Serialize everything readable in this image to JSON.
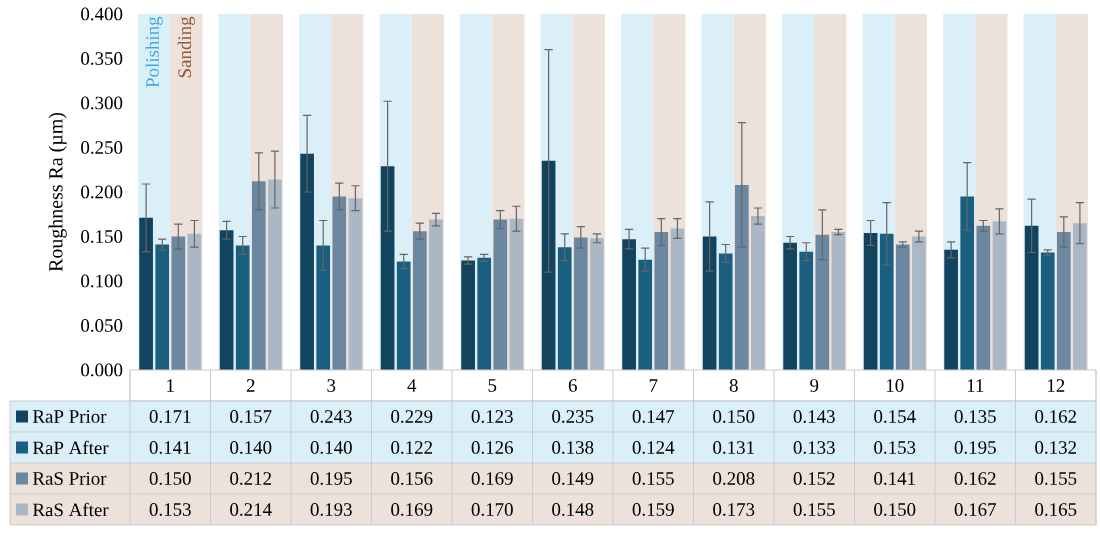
{
  "chart_data": {
    "type": "bar",
    "ylabel": "Roughness Ra (µm)",
    "categories": [
      "1",
      "2",
      "3",
      "4",
      "5",
      "6",
      "7",
      "8",
      "9",
      "10",
      "11",
      "12"
    ],
    "ylim": [
      0,
      0.4
    ],
    "yticks": [
      {
        "value": 0,
        "label": "0.000"
      },
      {
        "value": 0.05,
        "label": "0.050"
      },
      {
        "value": 0.1,
        "label": "0.100"
      },
      {
        "value": 0.15,
        "label": "0.150"
      },
      {
        "value": 0.2,
        "label": "0.200"
      },
      {
        "value": 0.25,
        "label": "0.250"
      },
      {
        "value": 0.3,
        "label": "0.300"
      },
      {
        "value": 0.35,
        "label": "0.350"
      },
      {
        "value": 0.4,
        "label": "0.400"
      }
    ],
    "legend": "bottom",
    "bands": [
      {
        "axis": "x",
        "from": "1",
        "to": "1",
        "label": "Polishing",
        "color": "#dbeff8"
      },
      {
        "axis": "x",
        "from": "1",
        "to": "1",
        "label": "Sanding",
        "color": "#ede1db"
      },
      {
        "axis": "x",
        "from": "2",
        "to": "2",
        "color": "#dbeff8"
      },
      {
        "axis": "x",
        "from": "2",
        "to": "2",
        "color": "#ede1db"
      },
      {
        "axis": "x",
        "from": "3",
        "to": "3",
        "color": "#dbeff8"
      },
      {
        "axis": "x",
        "from": "3",
        "to": "3",
        "color": "#ede1db"
      },
      {
        "axis": "x",
        "from": "4",
        "to": "4",
        "color": "#dbeff8"
      },
      {
        "axis": "x",
        "from": "4",
        "to": "4",
        "color": "#ede1db"
      },
      {
        "axis": "x",
        "from": "5",
        "to": "5",
        "color": "#dbeff8"
      },
      {
        "axis": "x",
        "from": "5",
        "to": "5",
        "color": "#ede1db"
      },
      {
        "axis": "x",
        "from": "6",
        "to": "6",
        "color": "#dbeff8"
      },
      {
        "axis": "x",
        "from": "6",
        "to": "6",
        "color": "#ede1db"
      },
      {
        "axis": "x",
        "from": "7",
        "to": "7",
        "color": "#dbeff8"
      },
      {
        "axis": "x",
        "from": "7",
        "to": "7",
        "color": "#ede1db"
      },
      {
        "axis": "x",
        "from": "8",
        "to": "8",
        "color": "#dbeff8"
      },
      {
        "axis": "x",
        "from": "8",
        "to": "8",
        "color": "#ede1db"
      },
      {
        "axis": "x",
        "from": "9",
        "to": "9",
        "color": "#dbeff8"
      },
      {
        "axis": "x",
        "from": "9",
        "to": "9",
        "color": "#ede1db"
      },
      {
        "axis": "x",
        "from": "10",
        "to": "10",
        "color": "#dbeff8"
      },
      {
        "axis": "x",
        "from": "10",
        "to": "10",
        "color": "#ede1db"
      },
      {
        "axis": "x",
        "from": "11",
        "to": "11",
        "color": "#dbeff8"
      },
      {
        "axis": "x",
        "from": "11",
        "to": "11",
        "color": "#ede1db"
      },
      {
        "axis": "x",
        "from": "12",
        "to": "12",
        "color": "#dbeff8"
      },
      {
        "axis": "x",
        "from": "12",
        "to": "12",
        "color": "#ede1db"
      }
    ],
    "series": [
      {
        "name": "RaP Prior",
        "color": "#124460",
        "values": [
          0.171,
          0.157,
          0.243,
          0.229,
          0.123,
          0.235,
          0.147,
          0.15,
          0.143,
          0.154,
          0.135,
          0.162
        ],
        "value_labels": [
          "0.171",
          "0.157",
          "0.243",
          "0.229",
          "0.123",
          "0.235",
          "0.147",
          "0.150",
          "0.143",
          "0.154",
          "0.135",
          "0.162"
        ],
        "errors": [
          0.038,
          0.01,
          0.043,
          0.073,
          0.004,
          0.125,
          0.011,
          0.039,
          0.007,
          0.014,
          0.009,
          0.03
        ]
      },
      {
        "name": "RaP After",
        "color": "#1a5e80",
        "values": [
          0.141,
          0.14,
          0.14,
          0.122,
          0.126,
          0.138,
          0.124,
          0.131,
          0.133,
          0.153,
          0.195,
          0.132
        ],
        "value_labels": [
          "0.141",
          "0.140",
          "0.140",
          "0.122",
          "0.126",
          "0.138",
          "0.124",
          "0.131",
          "0.133",
          "0.153",
          "0.195",
          "0.132"
        ],
        "errors": [
          0.006,
          0.01,
          0.028,
          0.008,
          0.004,
          0.015,
          0.013,
          0.01,
          0.01,
          0.035,
          0.038,
          0.003
        ]
      },
      {
        "name": "RaS Prior",
        "color": "#6c88a0",
        "values": [
          0.15,
          0.212,
          0.195,
          0.156,
          0.169,
          0.149,
          0.155,
          0.208,
          0.152,
          0.141,
          0.162,
          0.155
        ],
        "value_labels": [
          "0.150",
          "0.212",
          "0.195",
          "0.156",
          "0.169",
          "0.149",
          "0.155",
          "0.208",
          "0.152",
          "0.141",
          "0.162",
          "0.155"
        ],
        "errors": [
          0.014,
          0.032,
          0.015,
          0.009,
          0.01,
          0.012,
          0.015,
          0.07,
          0.028,
          0.003,
          0.006,
          0.017
        ]
      },
      {
        "name": "RaS After",
        "color": "#aab8c6",
        "values": [
          0.153,
          0.214,
          0.193,
          0.169,
          0.17,
          0.148,
          0.159,
          0.173,
          0.155,
          0.15,
          0.167,
          0.165
        ],
        "value_labels": [
          "0.153",
          "0.214",
          "0.193",
          "0.169",
          "0.170",
          "0.148",
          "0.159",
          "0.173",
          "0.155",
          "0.150",
          "0.167",
          "0.165"
        ],
        "errors": [
          0.015,
          0.032,
          0.014,
          0.007,
          0.014,
          0.005,
          0.011,
          0.009,
          0.003,
          0.006,
          0.014,
          0.023
        ]
      }
    ]
  }
}
